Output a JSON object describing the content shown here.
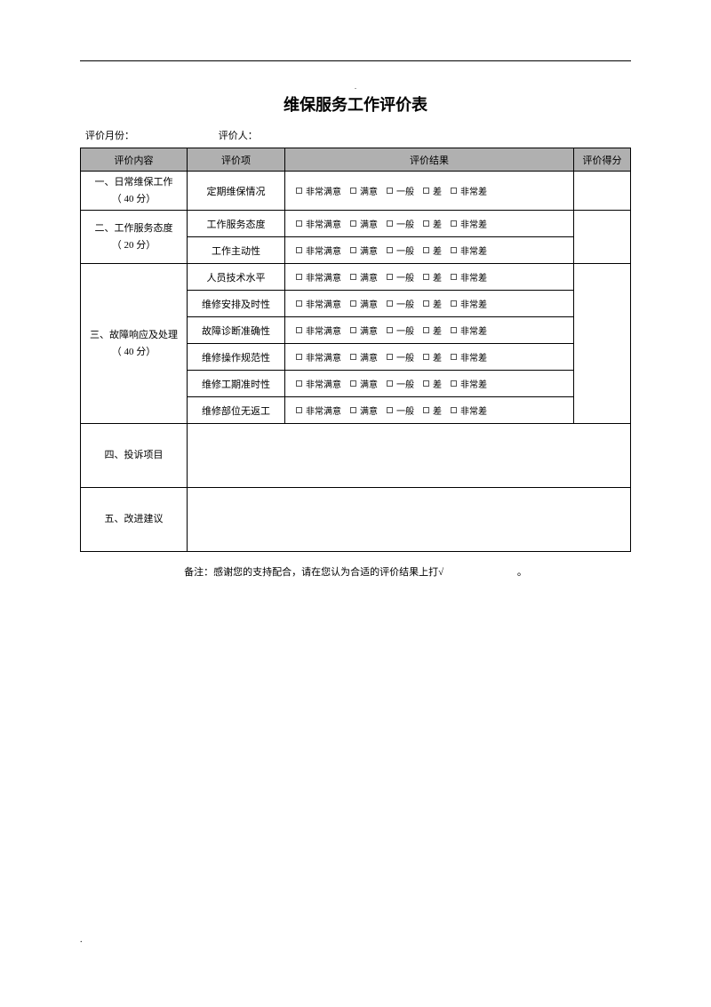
{
  "title": "维保服务工作评价表",
  "meta": {
    "month_label": "评价月份：",
    "evaluator_label": "评价人："
  },
  "headers": {
    "content": "评价内容",
    "item": "评价项",
    "result": "评价结果",
    "score": "评价得分"
  },
  "sections": [
    {
      "category_line1": "一、日常维保工作",
      "category_line2": "（ 40 分）",
      "items": [
        "定期维保情况"
      ],
      "tall_first": true
    },
    {
      "category_line1": "二、工作服务态度",
      "category_line2": "（ 20 分）",
      "items": [
        "工作服务态度",
        "工作主动性"
      ]
    },
    {
      "category_line1": "三、故障响应及处理",
      "category_line2": "（ 40 分）",
      "items": [
        "人员技术水平",
        "维修安排及时性",
        "故障诊断准确性",
        "维修操作规范性",
        "维修工期准时性",
        "维修部位无返工"
      ]
    }
  ],
  "free_rows": [
    {
      "label": "四、投诉项目"
    },
    {
      "label": "五、改进建议"
    }
  ],
  "rating_options": [
    "非常满意",
    "满意",
    "一般",
    "差",
    "非常差"
  ],
  "footnote": "备注：感谢您的支持配合，请在您认为合适的评价结果上打√",
  "footnote_dot": "。",
  "colors": {
    "header_bg": "#b0b0b0",
    "border": "#000000",
    "text": "#000000",
    "bg": "#ffffff"
  },
  "typography": {
    "title_fontsize": 18,
    "body_fontsize": 11,
    "rating_fontsize": 10
  }
}
